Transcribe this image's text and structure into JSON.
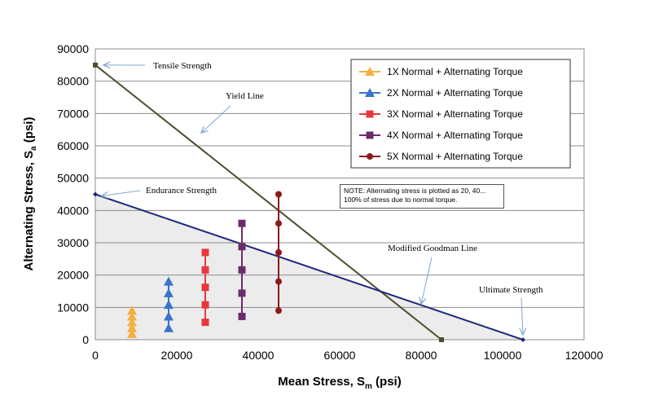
{
  "chart_data": {
    "type": "scatter",
    "xlabel_main": "Mean Stress, S",
    "xlabel_sub": "m",
    "xlabel_unit": " (psi)",
    "ylabel_main": "Alternating Stress, S",
    "ylabel_sub": "a",
    "ylabel_unit": " (psi)",
    "xlim": [
      0,
      120000
    ],
    "ylim": [
      0,
      90000
    ],
    "x_ticks": [
      0,
      20000,
      40000,
      60000,
      80000,
      100000,
      120000
    ],
    "y_ticks": [
      0,
      10000,
      20000,
      30000,
      40000,
      50000,
      60000,
      70000,
      80000,
      90000
    ],
    "grid": "horizontal",
    "legend_position": "top-right",
    "series": [
      {
        "name": "1X Normal + Alternating Torque",
        "color": "#F5B041",
        "marker": "triangle",
        "x": [
          9000,
          9000,
          9000,
          9000,
          9000
        ],
        "y": [
          1800,
          3600,
          5400,
          7200,
          9000
        ]
      },
      {
        "name": "2X Normal + Alternating Torque",
        "color": "#3A73C9",
        "marker": "triangle",
        "x": [
          18000,
          18000,
          18000,
          18000,
          18000
        ],
        "y": [
          3600,
          7200,
          10800,
          14400,
          18000
        ]
      },
      {
        "name": "3X Normal + Alternating Torque",
        "color": "#E8383D",
        "marker": "square",
        "x": [
          27000,
          27000,
          27000,
          27000,
          27000
        ],
        "y": [
          5400,
          10800,
          16200,
          21600,
          27000
        ]
      },
      {
        "name": "4X Normal + Alternating Torque",
        "color": "#6B2C6E",
        "marker": "square",
        "x": [
          36000,
          36000,
          36000,
          36000,
          36000
        ],
        "y": [
          7200,
          14400,
          21600,
          28800,
          36000
        ]
      },
      {
        "name": "5X Normal + Alternating Torque",
        "color": "#8B1A1A",
        "marker": "circle",
        "x": [
          45000,
          45000,
          45000,
          45000,
          45000
        ],
        "y": [
          9000,
          18000,
          27000,
          36000,
          45000
        ]
      }
    ],
    "lines": [
      {
        "name": "Yield Line",
        "color": "#4D4D2E",
        "x": [
          0,
          85000
        ],
        "y": [
          85000,
          0
        ]
      },
      {
        "name": "Modified Goodman Line",
        "color": "#1F2A7A",
        "x": [
          0,
          105000
        ],
        "y": [
          45000,
          0
        ]
      }
    ],
    "annotations": [
      {
        "id": "tensile",
        "text": "Tensile Strength"
      },
      {
        "id": "yield",
        "text": "Yield Line"
      },
      {
        "id": "endurance",
        "text": "Endurance Strength"
      },
      {
        "id": "goodman",
        "text": "Modified Goodman Line"
      },
      {
        "id": "ultimate",
        "text": "Ultimate Strength"
      }
    ],
    "note": "NOTE:  Alternating stress is plotted as 20, 40... 100% of stress due to normal torque."
  }
}
